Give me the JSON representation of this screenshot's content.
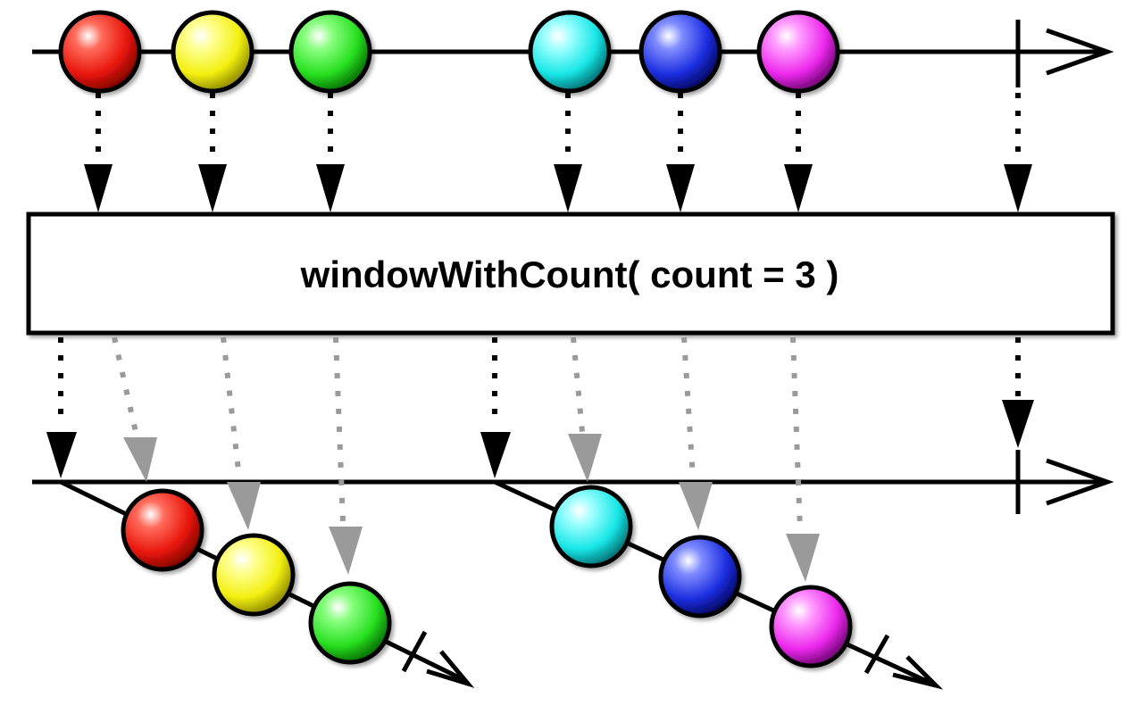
{
  "operator": {
    "label": "windowWithCount( count = 3 )"
  },
  "source_stream": {
    "items": [
      {
        "name": "red-marble",
        "color": "#e8160c"
      },
      {
        "name": "yellow-marble",
        "color": "#f2ef10"
      },
      {
        "name": "green-marble",
        "color": "#28e020"
      },
      {
        "name": "cyan-marble",
        "color": "#18e6e6"
      },
      {
        "name": "blue-marble",
        "color": "#1c2ee0"
      },
      {
        "name": "magenta-marble",
        "color": "#ec28ec"
      }
    ],
    "completes": true
  },
  "windows": [
    {
      "items": [
        {
          "name": "red-marble",
          "color": "#e8160c"
        },
        {
          "name": "yellow-marble",
          "color": "#f2ef10"
        },
        {
          "name": "green-marble",
          "color": "#28e020"
        }
      ],
      "completes": true
    },
    {
      "items": [
        {
          "name": "cyan-marble",
          "color": "#18e6e6"
        },
        {
          "name": "blue-marble",
          "color": "#1c2ee0"
        },
        {
          "name": "magenta-marble",
          "color": "#ec28ec"
        }
      ],
      "completes": true
    }
  ],
  "colors": {
    "line": "#000000",
    "ghost_arrow": "#9a9a9a",
    "box_fill": "#ffffff"
  }
}
